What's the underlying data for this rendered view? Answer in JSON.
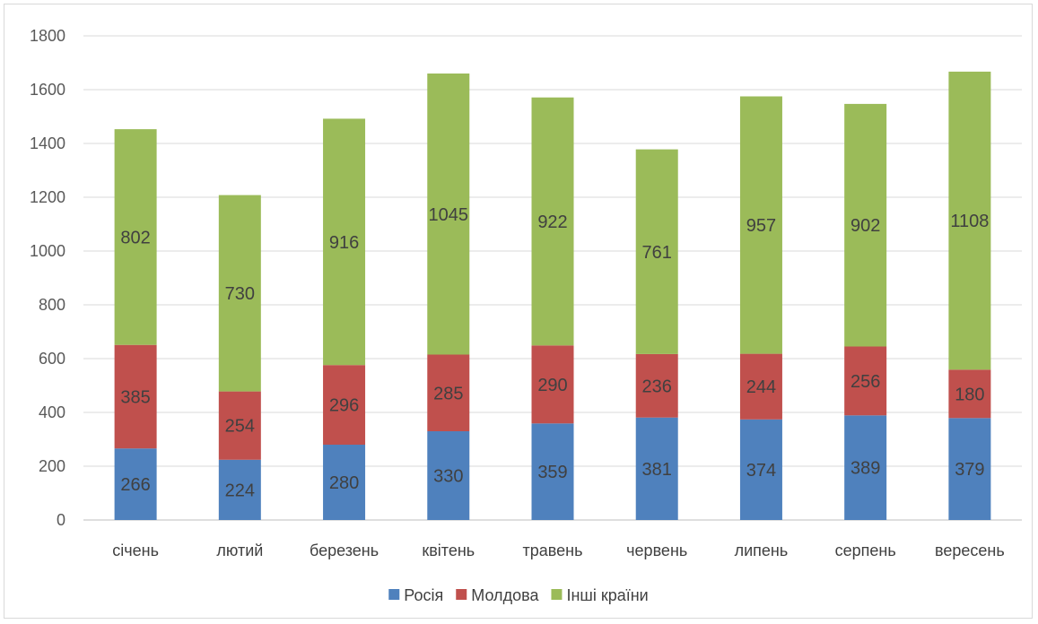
{
  "chart_data": {
    "type": "bar",
    "stacked": true,
    "categories": [
      "січень",
      "лютий",
      "березень",
      "квітень",
      "травень",
      "червень",
      "липень",
      "серпень",
      "вересень"
    ],
    "series": [
      {
        "name": "Росія",
        "color": "#4f81bd",
        "values": [
          266,
          224,
          280,
          330,
          359,
          381,
          374,
          389,
          379
        ]
      },
      {
        "name": "Молдова",
        "color": "#c0504d",
        "values": [
          385,
          254,
          296,
          285,
          290,
          236,
          244,
          256,
          180
        ]
      },
      {
        "name": "Інші країни",
        "color": "#9bbb59",
        "values": [
          802,
          730,
          916,
          1045,
          922,
          761,
          957,
          902,
          1108
        ]
      }
    ],
    "ylim": [
      0,
      1800
    ],
    "yticks": [
      0,
      200,
      400,
      600,
      800,
      1000,
      1200,
      1400,
      1600,
      1800
    ],
    "grid": true,
    "legend": "bottom",
    "data_labels": true
  }
}
